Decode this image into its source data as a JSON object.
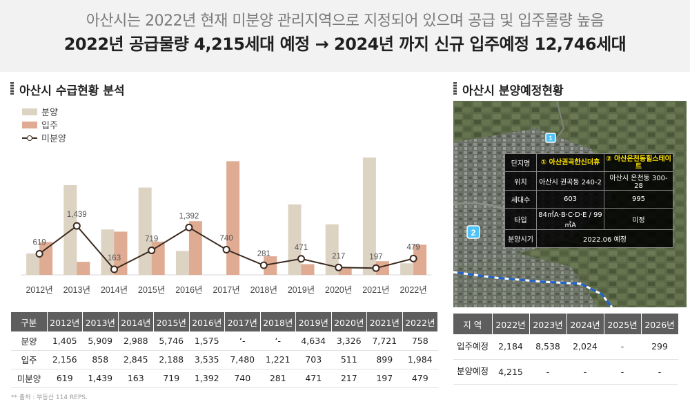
{
  "header": {
    "subtitle": "아산시는 2022년 현재 미분양 관리지역으로 지정되어 있으며 공급 및 입주물량 높음",
    "title": "2022년 공급물량 4,215세대 예정 → 2024년 까지 신규 입주예정 12,746세대"
  },
  "left_section_title": "아산시 수급현황 분석",
  "right_section_title": "아산시 분양예정현황",
  "colors": {
    "bunyang": "#ddd3c3",
    "ipju": "#dfab92",
    "line": "#3b2a20",
    "header_bg": "#5e5e5e"
  },
  "chart_data": {
    "type": "bar",
    "categories": [
      "2012년",
      "2013년",
      "2014년",
      "2015년",
      "2016년",
      "2017년",
      "2018년",
      "2019년",
      "2020년",
      "2021년",
      "2022년"
    ],
    "series": [
      {
        "name": "분양",
        "type": "bar",
        "values": [
          1405,
          5909,
          2988,
          5746,
          1575,
          null,
          null,
          4634,
          3326,
          7721,
          758
        ]
      },
      {
        "name": "입주",
        "type": "bar",
        "values": [
          2156,
          858,
          2845,
          2188,
          3535,
          7480,
          1221,
          703,
          511,
          899,
          1984
        ]
      },
      {
        "name": "미분양",
        "type": "line",
        "values": [
          619,
          1439,
          163,
          719,
          1392,
          740,
          281,
          471,
          217,
          197,
          479
        ]
      }
    ],
    "legend": "top-left"
  },
  "supply_table": {
    "header": "구분",
    "rows": [
      {
        "label": "분양",
        "cells": [
          "1,405",
          "5,909",
          "2,988",
          "5,746",
          "1,575",
          "‘-",
          "‘-",
          "4,634",
          "3,326",
          "7,721",
          "758"
        ]
      },
      {
        "label": "입주",
        "cells": [
          "2,156",
          "858",
          "2,845",
          "2,188",
          "3,535",
          "7,480",
          "1,221",
          "703",
          "511",
          "899",
          "1,984"
        ]
      },
      {
        "label": "미분양",
        "cells": [
          "619",
          "1,439",
          "163",
          "719",
          "1,392",
          "740",
          "281",
          "471",
          "217",
          "197",
          "479"
        ]
      }
    ]
  },
  "source": "** 출처 : 부동산 114 REPS.",
  "map": {
    "markers": [
      "1",
      "2"
    ],
    "info": {
      "col_header": "단지명",
      "complex_1": "① 아산권곡한신더휴",
      "complex_2": "② 아산온천동힐스테이트",
      "location_label": "위치",
      "location_1": "아산시 권곡동 240-2",
      "location_2": "아산시 온천동 300-28",
      "units_label": "세대수",
      "units_1": "603",
      "units_2": "995",
      "type_label": "타입",
      "type_1": "84㎡A·B·C·D·E / 99㎡A",
      "type_2": "미정",
      "sale_label": "분양시기",
      "sale_value": "2022.06 예정"
    }
  },
  "schedule_table": {
    "header": "지 역",
    "years": [
      "2022년",
      "2023년",
      "2024년",
      "2025년",
      "2026년"
    ],
    "rows": [
      {
        "label": "입주예정",
        "cells": [
          "2,184",
          "8,538",
          "2,024",
          "-",
          "299"
        ]
      },
      {
        "label": "분양예정",
        "cells": [
          "4,215",
          "-",
          "-",
          "-",
          "-"
        ]
      }
    ]
  }
}
